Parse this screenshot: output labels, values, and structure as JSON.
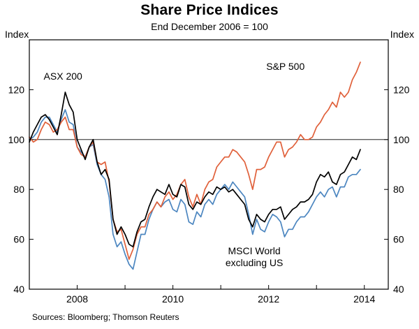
{
  "title": "Share Price Indices",
  "subtitle": "End December 2006 = 100",
  "y_axis_label_left": "Index",
  "y_axis_label_right": "Index",
  "source": "Sources: Bloomberg; Thomson Reuters",
  "chart_data": {
    "type": "line",
    "title": "Share Price Indices",
    "subtitle": "End December 2006 = 100",
    "x_unit": "decimal_year_monthly",
    "x_start": 2007.0,
    "x_step": 0.083333,
    "xlim": [
      2007.0,
      2014.5
    ],
    "ylim": [
      40,
      140
    ],
    "x_ticks": [
      2008,
      2010,
      2012,
      2014
    ],
    "y_ticks": [
      40,
      60,
      80,
      100,
      120
    ],
    "reference_line": 100,
    "grid": false,
    "legend": "inline-annotations",
    "series": [
      {
        "name": "ASX 200",
        "color": "#000000",
        "values": [
          99,
          103,
          106,
          109,
          110,
          108,
          105,
          102,
          110,
          119,
          114,
          111,
          100,
          96,
          92,
          97,
          100,
          91,
          86,
          88,
          84,
          68,
          62,
          65,
          62,
          58,
          57,
          63,
          67,
          68,
          73,
          77,
          80,
          79,
          78,
          82,
          78,
          77,
          82,
          81,
          74,
          72,
          75,
          74,
          77,
          79,
          78,
          81,
          80,
          81,
          79,
          80,
          78,
          76,
          74,
          68,
          65,
          70,
          68,
          67,
          70,
          72,
          72,
          73,
          68,
          70,
          72,
          73,
          75,
          75,
          76,
          78,
          83,
          86,
          85,
          87,
          83,
          82,
          86,
          87,
          90,
          93,
          92,
          96
        ]
      },
      {
        "name": "S&P 500",
        "color": "#e0603a",
        "values": [
          101,
          99,
          100,
          104,
          107,
          106,
          103,
          104,
          107,
          109,
          104,
          104,
          97,
          94,
          93,
          97,
          99,
          91,
          90,
          91,
          83,
          68,
          63,
          64,
          58,
          52,
          56,
          62,
          65,
          65,
          70,
          72,
          75,
          73,
          77,
          79,
          76,
          78,
          82,
          84,
          77,
          73,
          78,
          74,
          80,
          83,
          84,
          89,
          91,
          93,
          93,
          96,
          95,
          93,
          91,
          86,
          80,
          88,
          88,
          89,
          93,
          96,
          99,
          99,
          93,
          96,
          97,
          99,
          102,
          100,
          100,
          101,
          105,
          107,
          110,
          112,
          115,
          113,
          119,
          117,
          119,
          124,
          127,
          131
        ]
      },
      {
        "name": "MSCI World excluding US",
        "color": "#4c86c0",
        "values": [
          100,
          101,
          103,
          107,
          109,
          109,
          106,
          103,
          108,
          112,
          107,
          106,
          97,
          95,
          93,
          97,
          98,
          90,
          86,
          84,
          77,
          62,
          57,
          59,
          54,
          50,
          48,
          55,
          62,
          62,
          68,
          72,
          75,
          73,
          75,
          76,
          72,
          71,
          76,
          74,
          67,
          66,
          71,
          69,
          74,
          76,
          74,
          78,
          80,
          82,
          80,
          83,
          81,
          79,
          77,
          70,
          62,
          68,
          64,
          63,
          67,
          70,
          69,
          67,
          61,
          64,
          64,
          67,
          69,
          69,
          71,
          74,
          77,
          79,
          77,
          80,
          81,
          77,
          81,
          81,
          85,
          86,
          86,
          88
        ]
      }
    ],
    "annotations": [
      {
        "lines": [
          "ASX 200"
        ],
        "x": 2007.3,
        "y": 124,
        "color": "#000000",
        "anchor": "start"
      },
      {
        "lines": [
          "S&P 500"
        ],
        "x": 2011.95,
        "y": 128,
        "color": "#e0603a",
        "anchor": "start"
      },
      {
        "lines": [
          "MSCI World",
          "excluding US"
        ],
        "x": 2011.7,
        "y": 54,
        "color": "#4c86c0",
        "anchor": "middle"
      }
    ]
  }
}
